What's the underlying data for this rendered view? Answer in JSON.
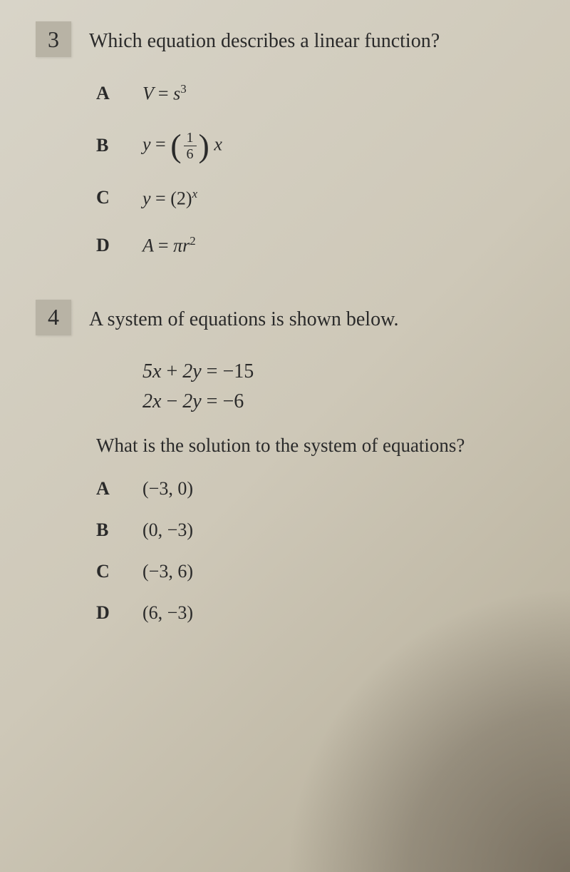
{
  "colors": {
    "background_gradient": [
      "#d8d4c8",
      "#cec8b8",
      "#b5ad98"
    ],
    "text": "#2a2a2a",
    "number_box": "#b8b3a5",
    "shadow": "rgba(60,50,40,0.5)"
  },
  "typography": {
    "font_family": "Times New Roman, serif",
    "question_number_size": 32,
    "question_text_size": 28,
    "option_letter_size": 26,
    "option_content_size": 26,
    "equation_size": 28
  },
  "question3": {
    "number": "3",
    "text": "Which equation describes a linear function?",
    "options": {
      "A": {
        "letter": "A",
        "var": "V",
        "equals": "=",
        "expr": "s",
        "sup": "3"
      },
      "B": {
        "letter": "B",
        "var": "y",
        "equals": "=",
        "frac_num": "1",
        "frac_den": "6",
        "after": "x"
      },
      "C": {
        "letter": "C",
        "var": "y",
        "equals": "=",
        "base_open": "(",
        "base": "2",
        "base_close": ")",
        "sup": "x"
      },
      "D": {
        "letter": "D",
        "var": "A",
        "equals": "=",
        "pi": "π",
        "r": "r",
        "sup": "2"
      }
    }
  },
  "question4": {
    "number": "4",
    "text": "A system of equations is shown below.",
    "equations": {
      "eq1": "5x + 2y = −15",
      "eq2": "2x − 2y = −6"
    },
    "sub_question": "What is the solution to the system of equations?",
    "options": {
      "A": {
        "letter": "A",
        "value": "(−3, 0)"
      },
      "B": {
        "letter": "B",
        "value": "(0, −3)"
      },
      "C": {
        "letter": "C",
        "value": "(−3, 6)"
      },
      "D": {
        "letter": "D",
        "value": "(6, −3)"
      }
    }
  }
}
